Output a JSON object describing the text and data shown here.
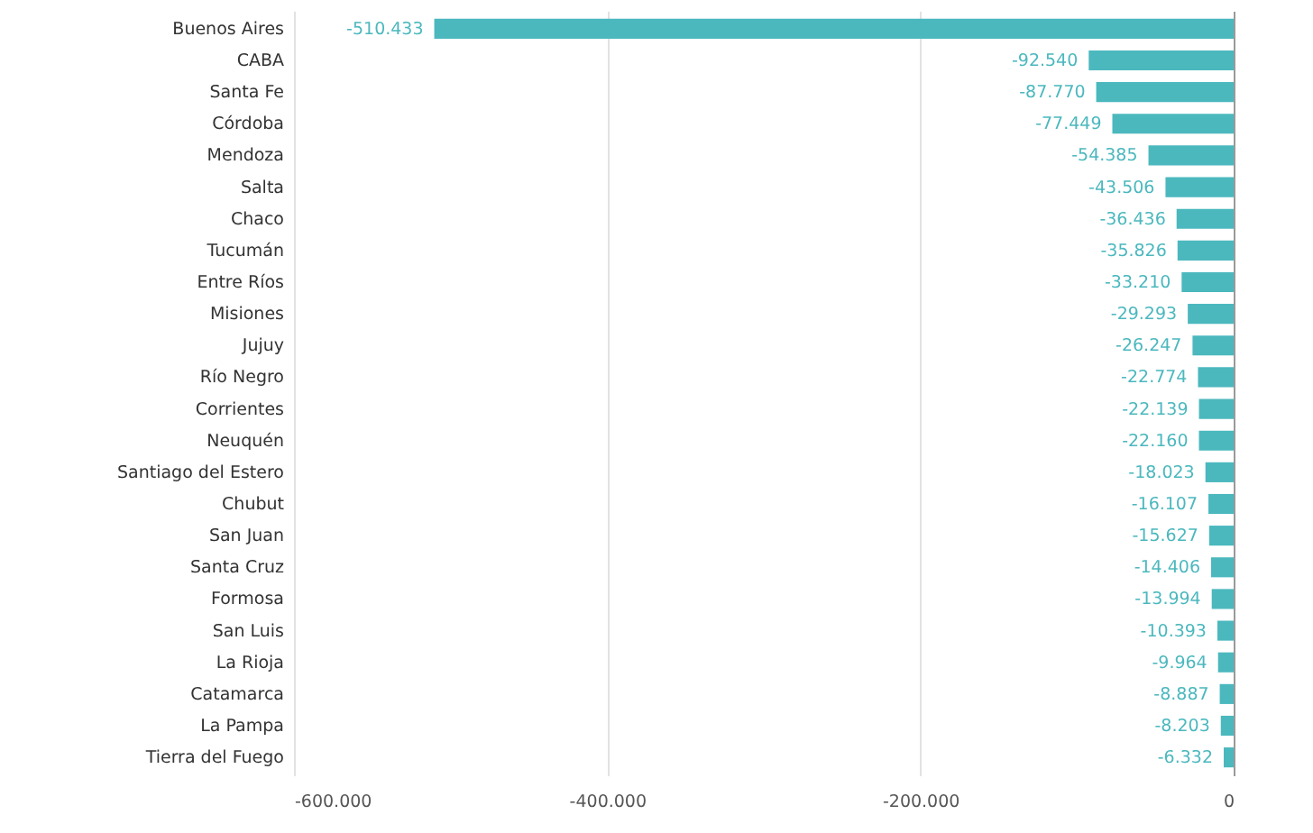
{
  "chart_data": {
    "type": "bar",
    "orientation": "horizontal",
    "categories": [
      "Buenos Aires",
      "CABA",
      "Santa Fe",
      "Córdoba",
      "Mendoza",
      "Salta",
      "Chaco",
      "Tucumán",
      "Entre Ríos",
      "Misiones",
      "Jujuy",
      "Río Negro",
      "Corrientes",
      "Neuquén",
      "Santiago del Estero",
      "Chubut",
      "San Juan",
      "Santa Cruz",
      "Formosa",
      "San Luis",
      "La Rioja",
      "Catamarca",
      "La Pampa",
      "Tierra del Fuego"
    ],
    "values": [
      -510433,
      -92540,
      -87770,
      -77449,
      -54385,
      -43506,
      -36436,
      -35826,
      -33210,
      -29293,
      -26247,
      -22774,
      -22139,
      -22160,
      -18023,
      -16107,
      -15627,
      -14406,
      -13994,
      -10393,
      -9964,
      -8887,
      -8203,
      -6332
    ],
    "value_labels": [
      "-510.433",
      "-92.540",
      "-87.770",
      "-77.449",
      "-54.385",
      "-43.506",
      "-36.436",
      "-35.826",
      "-33.210",
      "-29.293",
      "-26.247",
      "-22.774",
      "-22.139",
      "-22.160",
      "-18.023",
      "-16.107",
      "-15.627",
      "-14.406",
      "-13.994",
      "-10.393",
      "-9.964",
      "-8.887",
      "-8.203",
      "-6.332"
    ],
    "color": "#4bb8be",
    "xlim": [
      -600000,
      0
    ],
    "xticks": [
      {
        "value": -600000,
        "label": "-600.000"
      },
      {
        "value": -400000,
        "label": "-400.000"
      },
      {
        "value": -200000,
        "label": "-200.000"
      },
      0
    ],
    "grid": "x"
  }
}
